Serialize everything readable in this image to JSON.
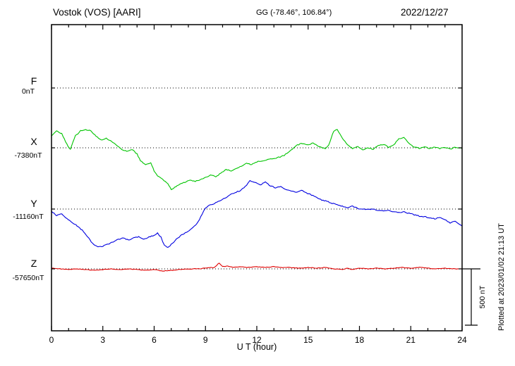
{
  "header": {
    "station_title": "Vostok (VOS)  [AARI]",
    "gg_coords": "GG (-78.46°, 106.84°)",
    "date": "2022/12/27"
  },
  "plot_note": "Plotted at 2023/01/02 21:13 UT",
  "axis": {
    "xlabel": "U T (hour)",
    "tick_labels": [
      "0",
      "3",
      "6",
      "9",
      "12",
      "15",
      "18",
      "21",
      "24"
    ],
    "xlim": [
      0,
      24
    ]
  },
  "scale_bar": {
    "label": "500 nT",
    "value_nT": 500
  },
  "chart_data": {
    "type": "line",
    "title": "Vostok (VOS) [AARI] magnetogram 2022/12/27",
    "x_unit": "UT hour",
    "xlim": [
      0,
      24
    ],
    "grid": "dotted horizontal baseline per component",
    "legend_position": "left component labels",
    "series": [
      {
        "id": "F",
        "label": "F",
        "baseline_label": "0nT",
        "baseline_nT": 0,
        "color": "#ffa500",
        "plotted": false,
        "points": []
      },
      {
        "id": "X",
        "label": "X",
        "baseline_label": "-7380nT",
        "baseline_nT": -7380,
        "color": "#00c400",
        "plotted": true,
        "points": [
          [
            0,
            -7274
          ],
          [
            0.3,
            -7230
          ],
          [
            0.6,
            -7255
          ],
          [
            0.9,
            -7349
          ],
          [
            1.1,
            -7393
          ],
          [
            1.4,
            -7274
          ],
          [
            1.7,
            -7230
          ],
          [
            2,
            -7217
          ],
          [
            2.3,
            -7230
          ],
          [
            2.6,
            -7274
          ],
          [
            2.9,
            -7311
          ],
          [
            3.2,
            -7292
          ],
          [
            3.5,
            -7324
          ],
          [
            3.8,
            -7355
          ],
          [
            4.1,
            -7393
          ],
          [
            4.4,
            -7411
          ],
          [
            4.7,
            -7393
          ],
          [
            5,
            -7436
          ],
          [
            5.2,
            -7493
          ],
          [
            5.5,
            -7530
          ],
          [
            5.8,
            -7511
          ],
          [
            6,
            -7586
          ],
          [
            6.2,
            -7630
          ],
          [
            6.5,
            -7661
          ],
          [
            6.8,
            -7699
          ],
          [
            7,
            -7749
          ],
          [
            7.2,
            -7730
          ],
          [
            7.5,
            -7699
          ],
          [
            7.8,
            -7686
          ],
          [
            8.1,
            -7668
          ],
          [
            8.4,
            -7680
          ],
          [
            8.7,
            -7661
          ],
          [
            9,
            -7643
          ],
          [
            9.3,
            -7624
          ],
          [
            9.6,
            -7636
          ],
          [
            9.9,
            -7605
          ],
          [
            10.2,
            -7574
          ],
          [
            10.5,
            -7586
          ],
          [
            10.8,
            -7561
          ],
          [
            11.1,
            -7543
          ],
          [
            11.4,
            -7518
          ],
          [
            11.7,
            -7530
          ],
          [
            12,
            -7505
          ],
          [
            12.4,
            -7493
          ],
          [
            12.8,
            -7480
          ],
          [
            13.2,
            -7468
          ],
          [
            13.6,
            -7449
          ],
          [
            14,
            -7399
          ],
          [
            14.3,
            -7361
          ],
          [
            14.6,
            -7342
          ],
          [
            15,
            -7355
          ],
          [
            15.3,
            -7336
          ],
          [
            15.6,
            -7367
          ],
          [
            16,
            -7386
          ],
          [
            16.2,
            -7355
          ],
          [
            16.5,
            -7230
          ],
          [
            16.7,
            -7217
          ],
          [
            17,
            -7292
          ],
          [
            17.3,
            -7355
          ],
          [
            17.6,
            -7386
          ],
          [
            17.9,
            -7367
          ],
          [
            18.2,
            -7399
          ],
          [
            18.5,
            -7380
          ],
          [
            18.8,
            -7393
          ],
          [
            19.1,
            -7361
          ],
          [
            19.4,
            -7349
          ],
          [
            19.7,
            -7374
          ],
          [
            20,
            -7355
          ],
          [
            20.3,
            -7299
          ],
          [
            20.6,
            -7292
          ],
          [
            20.9,
            -7342
          ],
          [
            21.2,
            -7374
          ],
          [
            21.5,
            -7386
          ],
          [
            21.8,
            -7367
          ],
          [
            22.1,
            -7386
          ],
          [
            22.4,
            -7374
          ],
          [
            22.7,
            -7386
          ],
          [
            23,
            -7374
          ],
          [
            23.3,
            -7393
          ],
          [
            23.6,
            -7374
          ],
          [
            24,
            -7386
          ]
        ]
      },
      {
        "id": "Y",
        "label": "Y",
        "baseline_label": "-11160nT",
        "baseline_nT": -11160,
        "color": "#0000e0",
        "plotted": true,
        "points": [
          [
            0,
            -11179
          ],
          [
            0.3,
            -11216
          ],
          [
            0.6,
            -11204
          ],
          [
            0.9,
            -11248
          ],
          [
            1.2,
            -11279
          ],
          [
            1.5,
            -11310
          ],
          [
            1.8,
            -11348
          ],
          [
            2.1,
            -11404
          ],
          [
            2.4,
            -11466
          ],
          [
            2.7,
            -11498
          ],
          [
            3,
            -11491
          ],
          [
            3.3,
            -11473
          ],
          [
            3.6,
            -11454
          ],
          [
            3.9,
            -11429
          ],
          [
            4.2,
            -11416
          ],
          [
            4.5,
            -11435
          ],
          [
            4.8,
            -11416
          ],
          [
            5.1,
            -11404
          ],
          [
            5.4,
            -11429
          ],
          [
            5.7,
            -11410
          ],
          [
            6,
            -11391
          ],
          [
            6.2,
            -11373
          ],
          [
            6.4,
            -11410
          ],
          [
            6.6,
            -11485
          ],
          [
            6.8,
            -11504
          ],
          [
            7,
            -11473
          ],
          [
            7.3,
            -11429
          ],
          [
            7.6,
            -11391
          ],
          [
            7.9,
            -11366
          ],
          [
            8.2,
            -11335
          ],
          [
            8.5,
            -11291
          ],
          [
            8.8,
            -11210
          ],
          [
            9,
            -11147
          ],
          [
            9.3,
            -11122
          ],
          [
            9.6,
            -11104
          ],
          [
            9.9,
            -11079
          ],
          [
            10.2,
            -11060
          ],
          [
            10.5,
            -11029
          ],
          [
            10.8,
            -11010
          ],
          [
            11.1,
            -10991
          ],
          [
            11.4,
            -10947
          ],
          [
            11.6,
            -10910
          ],
          [
            11.9,
            -10922
          ],
          [
            12.2,
            -10947
          ],
          [
            12.5,
            -10922
          ],
          [
            12.8,
            -10954
          ],
          [
            13.1,
            -10972
          ],
          [
            13.4,
            -10960
          ],
          [
            13.7,
            -10985
          ],
          [
            14,
            -10997
          ],
          [
            14.3,
            -11010
          ],
          [
            14.6,
            -10991
          ],
          [
            14.9,
            -11016
          ],
          [
            15.2,
            -11035
          ],
          [
            15.5,
            -11060
          ],
          [
            15.8,
            -11079
          ],
          [
            16.1,
            -11091
          ],
          [
            16.4,
            -11110
          ],
          [
            16.7,
            -11122
          ],
          [
            17,
            -11135
          ],
          [
            17.3,
            -11147
          ],
          [
            17.6,
            -11135
          ],
          [
            17.9,
            -11154
          ],
          [
            18.2,
            -11160
          ],
          [
            18.5,
            -11166
          ],
          [
            18.8,
            -11160
          ],
          [
            19.1,
            -11173
          ],
          [
            19.4,
            -11179
          ],
          [
            19.7,
            -11173
          ],
          [
            20,
            -11185
          ],
          [
            20.3,
            -11191
          ],
          [
            20.6,
            -11185
          ],
          [
            20.9,
            -11198
          ],
          [
            21.2,
            -11210
          ],
          [
            21.5,
            -11223
          ],
          [
            21.8,
            -11229
          ],
          [
            22.1,
            -11235
          ],
          [
            22.4,
            -11248
          ],
          [
            22.7,
            -11235
          ],
          [
            23,
            -11254
          ],
          [
            23.3,
            -11285
          ],
          [
            23.6,
            -11266
          ],
          [
            23.8,
            -11291
          ],
          [
            24,
            -11310
          ]
        ]
      },
      {
        "id": "Z",
        "label": "Z",
        "baseline_label": "-57650nT",
        "baseline_nT": -57650,
        "color": "#e00000",
        "plotted": true,
        "points": [
          [
            0,
            -57644
          ],
          [
            0.5,
            -57650
          ],
          [
            1,
            -57656
          ],
          [
            1.5,
            -57650
          ],
          [
            2,
            -57656
          ],
          [
            2.5,
            -57663
          ],
          [
            3,
            -57656
          ],
          [
            3.5,
            -57650
          ],
          [
            4,
            -57656
          ],
          [
            4.5,
            -57650
          ],
          [
            5,
            -57656
          ],
          [
            5.5,
            -57663
          ],
          [
            6,
            -57656
          ],
          [
            6.5,
            -57669
          ],
          [
            7,
            -57663
          ],
          [
            7.5,
            -57656
          ],
          [
            8,
            -57650
          ],
          [
            8.5,
            -57650
          ],
          [
            9,
            -57644
          ],
          [
            9.5,
            -57637
          ],
          [
            9.8,
            -57600
          ],
          [
            10,
            -57631
          ],
          [
            10.3,
            -57625
          ],
          [
            10.6,
            -57637
          ],
          [
            11,
            -57631
          ],
          [
            11.5,
            -57637
          ],
          [
            12,
            -57631
          ],
          [
            12.5,
            -57637
          ],
          [
            13,
            -57631
          ],
          [
            13.5,
            -57637
          ],
          [
            14,
            -57637
          ],
          [
            14.5,
            -57644
          ],
          [
            15,
            -57637
          ],
          [
            15.5,
            -57644
          ],
          [
            16,
            -57637
          ],
          [
            16.5,
            -57650
          ],
          [
            17,
            -57656
          ],
          [
            17.3,
            -57644
          ],
          [
            17.6,
            -57656
          ],
          [
            18,
            -57644
          ],
          [
            18.5,
            -57650
          ],
          [
            19,
            -57644
          ],
          [
            19.5,
            -57650
          ],
          [
            20,
            -57644
          ],
          [
            20.5,
            -57637
          ],
          [
            21,
            -57644
          ],
          [
            21.5,
            -57637
          ],
          [
            22,
            -57644
          ],
          [
            22.5,
            -57650
          ],
          [
            23,
            -57644
          ],
          [
            23.5,
            -57650
          ],
          [
            24,
            -57650
          ]
        ]
      }
    ]
  }
}
